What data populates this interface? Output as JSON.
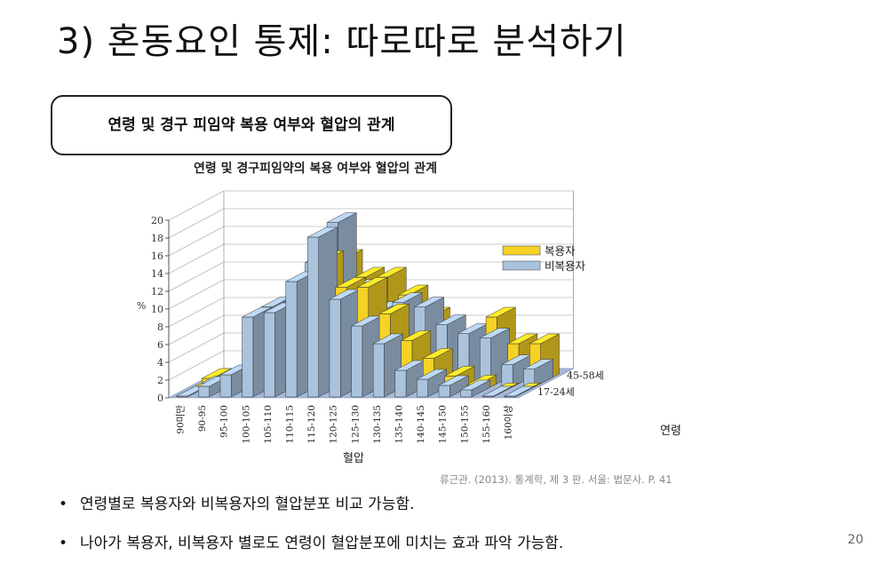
{
  "slide": {
    "title": "3) 혼동요인 통제: 따로따로 분석하기",
    "callout": "연령 및 경구 피임약 복용 여부와 혈압의 관계",
    "source": "류근관. (2013). 통계학, 제 3 판. 서울: 법문사. P. 41",
    "bullets": [
      "연령별로 복용자와 비복용자의 혈압분포 비교 가능함.",
      "나아가 복용자, 비복용자 별로도 연령이 혈압분포에 미치는 효과 파악 가능함."
    ],
    "page_number": "20"
  },
  "chart_data": {
    "type": "bar",
    "title": "연령 및 경구피임약의 복용 여부와 혈압의 관계",
    "xlabel": "혈압",
    "ylabel": "%",
    "zlabel": "연령",
    "ylim": [
      0,
      20
    ],
    "yticks": [
      0,
      2,
      4,
      6,
      8,
      10,
      12,
      14,
      16,
      18,
      20
    ],
    "categories": [
      "90미만",
      "90-95",
      "95-100",
      "100-105",
      "105-110",
      "110-115",
      "115-120",
      "120-125",
      "125-130",
      "130-135",
      "135-140",
      "140-145",
      "145-150",
      "150-155",
      "155-160",
      "160이상"
    ],
    "age_groups": [
      "17-24세",
      "45-58세"
    ],
    "legend": [
      {
        "name": "복용자",
        "color": "#f5d224"
      },
      {
        "name": "비복용자",
        "color": "#a9c3dd"
      }
    ],
    "legend_position": "top-right",
    "series": [
      {
        "name": "복용자",
        "age": "17-24세",
        "values": [
          0,
          0.5,
          1.2,
          6,
          9,
          11,
          15,
          12,
          12,
          9,
          6,
          4,
          2,
          1,
          0,
          0
        ]
      },
      {
        "name": "비복용자",
        "age": "17-24세",
        "values": [
          0.1,
          1.2,
          2.5,
          9,
          9.5,
          13,
          18,
          11,
          8,
          6,
          3,
          2,
          1.3,
          0.8,
          0,
          0
        ]
      },
      {
        "name": "복용자",
        "age": "45-58세",
        "values": [
          0.6,
          1,
          1.5,
          4,
          6,
          10,
          14,
          12,
          12,
          10,
          7.5,
          4.5,
          3,
          7.5,
          4.5,
          4.5
        ]
      },
      {
        "name": "비복용자",
        "age": "45-58세",
        "values": [
          0,
          0.7,
          2.3,
          9,
          9.5,
          14,
          18.5,
          11,
          8.5,
          9.5,
          9,
          7,
          6,
          5.5,
          2.5,
          2
        ]
      }
    ],
    "grid": true
  }
}
